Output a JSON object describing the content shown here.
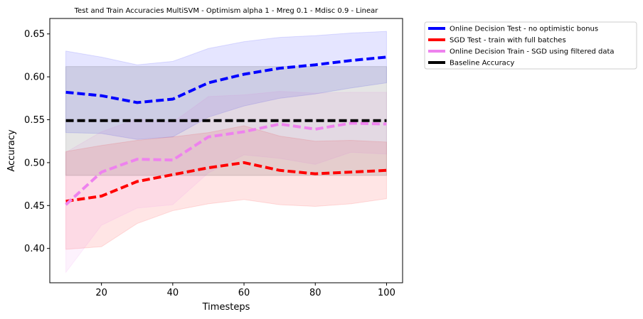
{
  "chart_data": {
    "type": "line",
    "title": "Test and Train Accuracies MultiSVM - Optimism alpha 1 - Mreg 0.1 - Mdisc 0.9 - Linear",
    "xlabel": "Timesteps",
    "ylabel": "Accuracy",
    "xlim": [
      5.5,
      104.5
    ],
    "ylim": [
      0.36,
      0.668
    ],
    "xticks": [
      20,
      40,
      60,
      80,
      100
    ],
    "yticks": [
      0.4,
      0.45,
      0.5,
      0.55,
      0.6,
      0.65
    ],
    "xtick_labels": [
      "20",
      "40",
      "60",
      "80",
      "100"
    ],
    "ytick_labels": [
      "0.40",
      "0.45",
      "0.50",
      "0.55",
      "0.60",
      "0.65"
    ],
    "grid": false,
    "legend_position": "outside-top-right",
    "x": [
      10,
      20,
      30,
      40,
      50,
      60,
      70,
      80,
      90,
      100
    ],
    "series": [
      {
        "name": "Online Decision Test - no optimistic bonus",
        "color": "#0000ff",
        "values": [
          0.582,
          0.578,
          0.57,
          0.574,
          0.593,
          0.603,
          0.61,
          0.614,
          0.619,
          0.623
        ],
        "lower": [
          0.535,
          0.534,
          0.527,
          0.53,
          0.553,
          0.566,
          0.575,
          0.58,
          0.587,
          0.593
        ],
        "upper": [
          0.63,
          0.623,
          0.614,
          0.618,
          0.633,
          0.641,
          0.646,
          0.648,
          0.651,
          0.653
        ]
      },
      {
        "name": "SGD Test - train with full batches",
        "color": "#ff0000",
        "values": [
          0.455,
          0.461,
          0.478,
          0.486,
          0.494,
          0.5,
          0.491,
          0.487,
          0.489,
          0.491
        ],
        "lower": [
          0.399,
          0.402,
          0.429,
          0.444,
          0.452,
          0.457,
          0.451,
          0.449,
          0.452,
          0.458
        ],
        "upper": [
          0.513,
          0.52,
          0.526,
          0.53,
          0.535,
          0.543,
          0.531,
          0.525,
          0.526,
          0.524
        ]
      },
      {
        "name": "Online Decision Train - SGD using filtered data",
        "color": "#ee82ee",
        "values": [
          0.451,
          0.489,
          0.504,
          0.503,
          0.53,
          0.536,
          0.545,
          0.539,
          0.546,
          0.545
        ],
        "lower": [
          0.372,
          0.427,
          0.447,
          0.451,
          0.488,
          0.509,
          0.505,
          0.498,
          0.512,
          0.51
        ],
        "upper": [
          0.512,
          0.536,
          0.551,
          0.547,
          0.577,
          0.579,
          0.583,
          0.581,
          0.582,
          0.582
        ]
      },
      {
        "name": "Baseline Accuracy",
        "color": "#000000",
        "values": [
          0.549,
          0.549,
          0.549,
          0.549,
          0.549,
          0.549,
          0.549,
          0.549,
          0.549,
          0.549
        ],
        "lower": [
          0.485,
          0.485,
          0.485,
          0.485,
          0.485,
          0.485,
          0.485,
          0.485,
          0.485,
          0.485
        ],
        "upper": [
          0.612,
          0.612,
          0.612,
          0.612,
          0.612,
          0.612,
          0.612,
          0.612,
          0.612,
          0.612
        ]
      }
    ]
  }
}
